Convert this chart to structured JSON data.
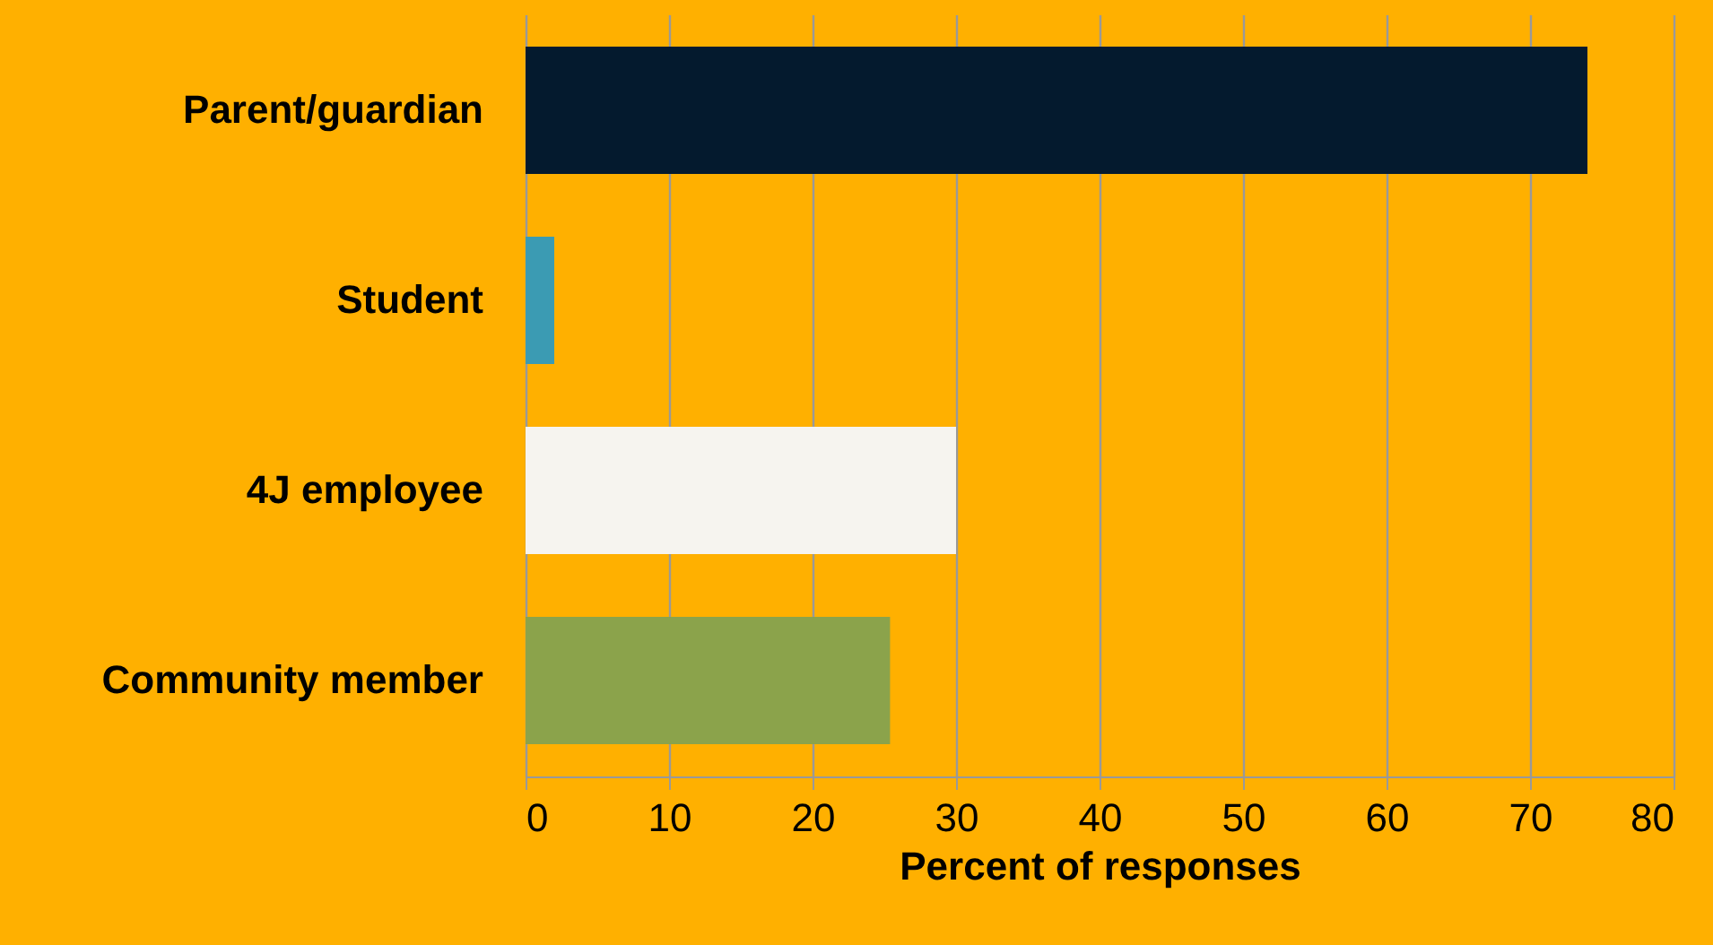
{
  "chart_data": {
    "type": "bar",
    "orientation": "horizontal",
    "xlabel": "Percent of responses",
    "categories": [
      "Parent/guardian",
      "Student",
      "4J employee",
      "Community member"
    ],
    "values": [
      74,
      2,
      30,
      25.4
    ],
    "colors": [
      "#041a2e",
      "#3b9bb3",
      "#f6f4ef",
      "#8ba34b"
    ],
    "xlim": [
      0,
      80
    ],
    "xticks": [
      0,
      10,
      20,
      30,
      40,
      50,
      60,
      70,
      80
    ],
    "grid": "x"
  }
}
